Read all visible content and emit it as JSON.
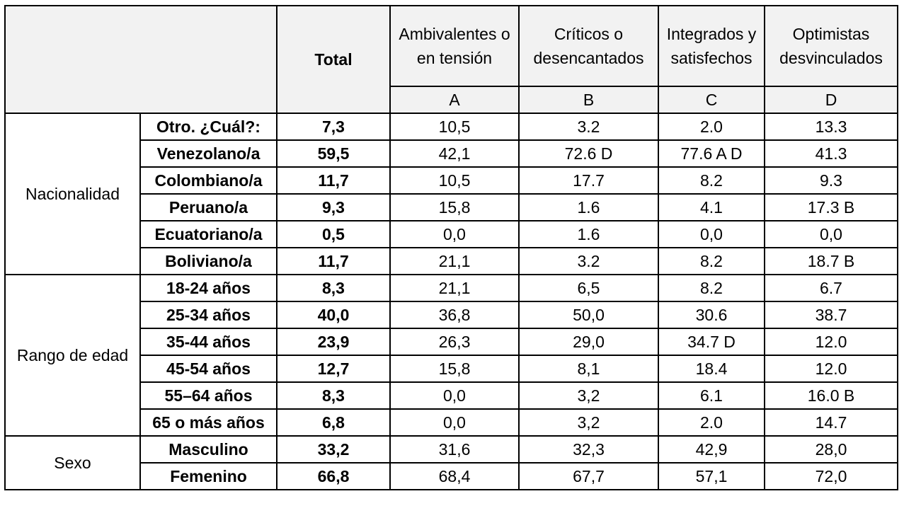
{
  "header": {
    "total": "Total",
    "groups": [
      {
        "name": "Ambivalentes o en tensión",
        "letter": "A"
      },
      {
        "name": "Críticos o desencantados",
        "letter": "B"
      },
      {
        "name": "Integrados y satisfechos",
        "letter": "C"
      },
      {
        "name": "Optimistas desvinculados",
        "letter": "D"
      }
    ]
  },
  "sections": [
    {
      "label": "Nacionalidad",
      "rows": [
        {
          "label": "Otro. ¿Cuál?:",
          "total": "7,3",
          "a": "10,5",
          "b": "3.2",
          "c": "2.0",
          "d": "13.3"
        },
        {
          "label": "Venezolano/a",
          "total": "59,5",
          "a": "42,1",
          "b": "72.6 D",
          "c": "77.6 A D",
          "d": "41.3"
        },
        {
          "label": "Colombiano/a",
          "total": "11,7",
          "a": "10,5",
          "b": "17.7",
          "c": "8.2",
          "d": "9.3"
        },
        {
          "label": "Peruano/a",
          "total": "9,3",
          "a": "15,8",
          "b": "1.6",
          "c": "4.1",
          "d": "17.3 B"
        },
        {
          "label": "Ecuatoriano/a",
          "total": "0,5",
          "a": "0,0",
          "b": "1.6",
          "c": "0,0",
          "d": "0,0"
        },
        {
          "label": "Boliviano/a",
          "total": "11,7",
          "a": "21,1",
          "b": "3.2",
          "c": "8.2",
          "d": "18.7 B"
        }
      ]
    },
    {
      "label": "Rango de edad",
      "rows": [
        {
          "label": "18-24 años",
          "total": "8,3",
          "a": "21,1",
          "b": "6,5",
          "c": "8.2",
          "d": "6.7"
        },
        {
          "label": "25-34 años",
          "total": "40,0",
          "a": "36,8",
          "b": "50,0",
          "c": "30.6",
          "d": "38.7"
        },
        {
          "label": "35-44 años",
          "total": "23,9",
          "a": "26,3",
          "b": "29,0",
          "c": "34.7 D",
          "d": "12.0"
        },
        {
          "label": "45-54 años",
          "total": "12,7",
          "a": "15,8",
          "b": "8,1",
          "c": "18.4",
          "d": "12.0"
        },
        {
          "label": "55–64 años",
          "total": "8,3",
          "a": "0,0",
          "b": "3,2",
          "c": "6.1",
          "d": "16.0 B"
        },
        {
          "label": "65 o más años",
          "total": "6,8",
          "a": "0,0",
          "b": "3,2",
          "c": "2.0",
          "d": "14.7"
        }
      ]
    },
    {
      "label": "Sexo",
      "rows": [
        {
          "label": "Masculino",
          "total": "33,2",
          "a": "31,6",
          "b": "32,3",
          "c": "42,9",
          "d": "28,0"
        },
        {
          "label": "Femenino",
          "total": "66,8",
          "a": "68,4",
          "b": "67,7",
          "c": "57,1",
          "d": "72,0"
        }
      ]
    }
  ]
}
